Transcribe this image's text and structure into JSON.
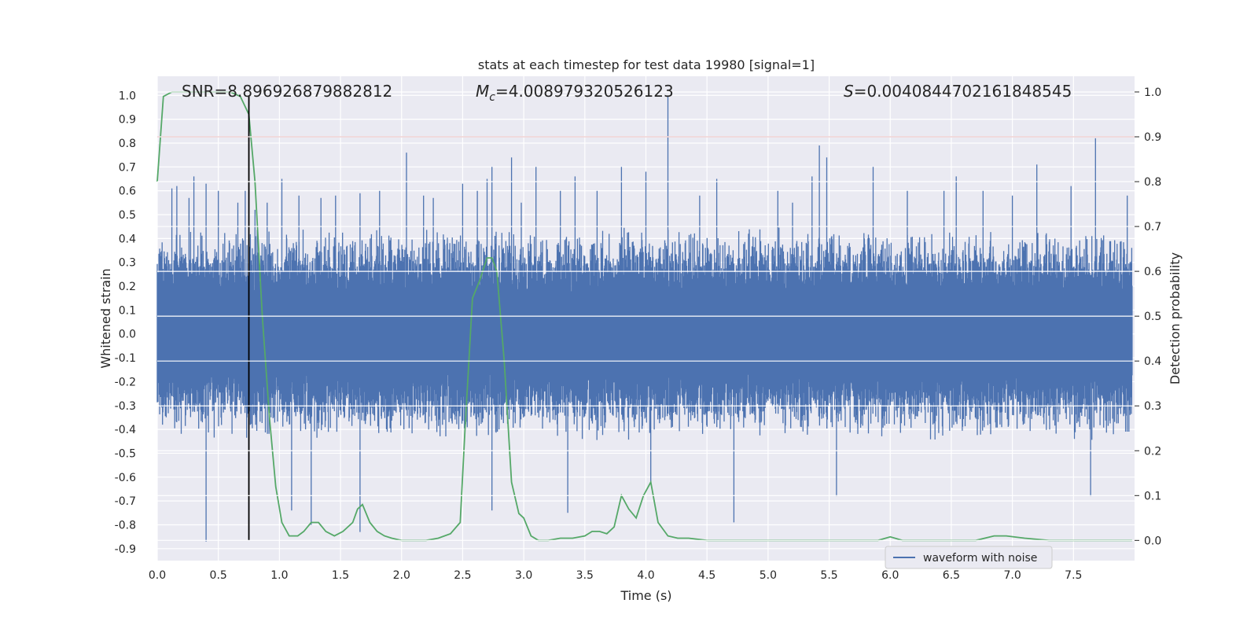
{
  "chart_data": {
    "type": "line",
    "title": "stats at each timestep for test data 19980 [signal=1]",
    "xlabel": "Time (s)",
    "ylabel": "Whitened strain",
    "y2label": "Detection probability",
    "xlim": [
      0.0,
      8.0
    ],
    "ylim": [
      -0.95,
      1.08
    ],
    "y2lim": [
      -0.045,
      1.035
    ],
    "x_ticks": [
      "0.0",
      "0.5",
      "1.0",
      "1.5",
      "2.0",
      "2.5",
      "3.0",
      "3.5",
      "4.0",
      "4.5",
      "5.0",
      "5.5",
      "6.0",
      "6.5",
      "7.0",
      "7.5"
    ],
    "y_ticks": [
      "1.0",
      "0.9",
      "0.8",
      "0.7",
      "0.6",
      "0.5",
      "0.4",
      "0.3",
      "0.2",
      "0.1",
      "0.0",
      "-0.1",
      "-0.2",
      "-0.3",
      "-0.4",
      "-0.5",
      "-0.6",
      "-0.7",
      "-0.8",
      "-0.9"
    ],
    "y2_ticks": [
      "1.0",
      "0.9",
      "0.8",
      "0.7",
      "0.6",
      "0.5",
      "0.4",
      "0.3",
      "0.2",
      "0.1",
      "0.0"
    ],
    "grid": true,
    "annotations": {
      "snr": "SNR=8.896926879882812",
      "mc_symbol": "M",
      "mc_sub": "c",
      "mc_value": "=4.008979320526123",
      "s_symbol": "S",
      "s_value": "=0.0040844702161848545"
    },
    "threshold_y2": 0.9,
    "event_time": 0.75,
    "legend": {
      "label": "waveform with noise",
      "position": "lower-right"
    },
    "series": [
      {
        "name": "waveform with noise",
        "axis": "left",
        "kind": "noise",
        "envelope": 0.3,
        "spikes": [
          [
            0.02,
            0.33
          ],
          [
            0.12,
            0.61
          ],
          [
            0.16,
            0.62
          ],
          [
            0.26,
            0.57
          ],
          [
            0.3,
            0.66
          ],
          [
            0.4,
            0.63
          ],
          [
            0.4,
            -0.87
          ],
          [
            0.5,
            0.6
          ],
          [
            0.66,
            0.55
          ],
          [
            0.72,
            0.6
          ],
          [
            0.8,
            0.52
          ],
          [
            0.9,
            0.55
          ],
          [
            1.02,
            0.65
          ],
          [
            1.06,
            0.4
          ],
          [
            1.1,
            -0.74
          ],
          [
            1.16,
            0.58
          ],
          [
            1.26,
            -0.8
          ],
          [
            1.34,
            0.57
          ],
          [
            1.46,
            0.58
          ],
          [
            1.66,
            0.59
          ],
          [
            1.66,
            -0.83
          ],
          [
            1.82,
            0.6
          ],
          [
            2.04,
            0.76
          ],
          [
            2.18,
            0.58
          ],
          [
            2.26,
            0.57
          ],
          [
            2.5,
            0.63
          ],
          [
            2.62,
            0.6
          ],
          [
            2.7,
            0.65
          ],
          [
            2.74,
            0.7
          ],
          [
            2.74,
            -0.74
          ],
          [
            2.9,
            0.74
          ],
          [
            2.98,
            0.55
          ],
          [
            3.1,
            0.7
          ],
          [
            3.3,
            0.6
          ],
          [
            3.36,
            -0.75
          ],
          [
            3.42,
            0.66
          ],
          [
            3.6,
            0.6
          ],
          [
            3.8,
            0.7
          ],
          [
            4.0,
            0.68
          ],
          [
            4.04,
            -0.62
          ],
          [
            4.18,
            1.0
          ],
          [
            4.44,
            0.58
          ],
          [
            4.58,
            0.65
          ],
          [
            4.72,
            -0.79
          ],
          [
            5.08,
            0.6
          ],
          [
            5.2,
            0.55
          ],
          [
            5.36,
            0.66
          ],
          [
            5.42,
            0.79
          ],
          [
            5.48,
            0.74
          ],
          [
            5.56,
            -0.68
          ],
          [
            5.86,
            0.7
          ],
          [
            6.14,
            0.6
          ],
          [
            6.44,
            0.6
          ],
          [
            6.54,
            0.66
          ],
          [
            6.76,
            0.6
          ],
          [
            7.0,
            0.58
          ],
          [
            7.2,
            0.71
          ],
          [
            7.48,
            0.62
          ],
          [
            7.64,
            -0.68
          ],
          [
            7.68,
            0.82
          ],
          [
            7.94,
            0.58
          ]
        ],
        "color": "#4c72b0"
      },
      {
        "name": "",
        "axis": "right",
        "x": [
          0.0,
          0.05,
          0.12,
          0.2,
          0.3,
          0.4,
          0.5,
          0.6,
          0.68,
          0.75,
          0.8,
          0.86,
          0.92,
          0.97,
          1.02,
          1.08,
          1.15,
          1.2,
          1.26,
          1.32,
          1.38,
          1.45,
          1.52,
          1.6,
          1.64,
          1.68,
          1.74,
          1.8,
          1.86,
          1.92,
          2.0,
          2.1,
          2.2,
          2.3,
          2.4,
          2.48,
          2.52,
          2.58,
          2.64,
          2.7,
          2.74,
          2.78,
          2.84,
          2.9,
          2.96,
          3.0,
          3.06,
          3.12,
          3.2,
          3.3,
          3.4,
          3.5,
          3.56,
          3.62,
          3.68,
          3.74,
          3.8,
          3.86,
          3.92,
          3.98,
          4.04,
          4.1,
          4.18,
          4.26,
          4.35,
          4.5,
          4.7,
          4.9,
          5.1,
          5.3,
          5.5,
          5.7,
          5.9,
          6.0,
          6.1,
          6.3,
          6.5,
          6.7,
          6.85,
          6.95,
          7.1,
          7.3,
          7.5,
          7.7,
          7.85,
          7.98
        ],
        "values": [
          0.8,
          0.99,
          1.0,
          1.0,
          1.0,
          1.0,
          1.0,
          1.0,
          0.99,
          0.95,
          0.8,
          0.5,
          0.27,
          0.12,
          0.04,
          0.01,
          0.01,
          0.02,
          0.04,
          0.04,
          0.02,
          0.01,
          0.02,
          0.04,
          0.07,
          0.08,
          0.04,
          0.02,
          0.01,
          0.005,
          0.0,
          0.0,
          0.0,
          0.005,
          0.015,
          0.04,
          0.25,
          0.54,
          0.58,
          0.63,
          0.63,
          0.6,
          0.4,
          0.13,
          0.06,
          0.05,
          0.01,
          0.0,
          0.0,
          0.005,
          0.005,
          0.01,
          0.02,
          0.02,
          0.015,
          0.03,
          0.1,
          0.07,
          0.05,
          0.1,
          0.13,
          0.04,
          0.01,
          0.005,
          0.005,
          0.0,
          0.0,
          0.0,
          0.0,
          0.0,
          0.0,
          0.0,
          0.0,
          0.008,
          0.0,
          0.0,
          0.0,
          0.0,
          0.01,
          0.01,
          0.005,
          0.0,
          0.0,
          0.0,
          0.0,
          0.0
        ],
        "color": "#55a868"
      }
    ]
  }
}
